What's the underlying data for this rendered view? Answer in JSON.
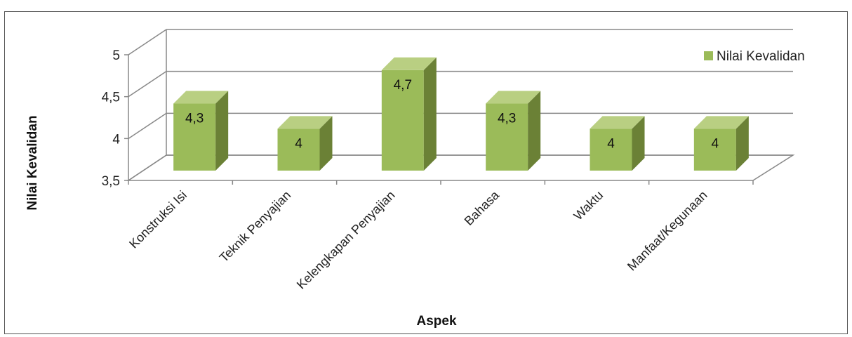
{
  "chart_data": {
    "type": "bar",
    "title": "",
    "xlabel": "Aspek",
    "ylabel": "Nilai Kevalidan",
    "ylim": [
      3.5,
      5
    ],
    "yticks": [
      "3,5",
      "4",
      "4,5",
      "5"
    ],
    "ytick_values": [
      3.5,
      4,
      4.5,
      5
    ],
    "categories": [
      "Konstruksi Isi",
      "Teknik Penyajian",
      "Kelengkapan Penyajian",
      "Bahasa",
      "Waktu",
      "Manfaat/Kegunaan"
    ],
    "series": [
      {
        "name": "Nilai Kevalidan",
        "values": [
          4.3,
          4,
          4.7,
          4.3,
          4,
          4
        ],
        "labels": [
          "4,3",
          "4",
          "4,7",
          "4,3",
          "4",
          "4"
        ],
        "color_front": "#9bbb59",
        "color_side": "#6b8136",
        "color_top": "#b9cf82"
      }
    ],
    "legend_position": "right",
    "grid": true,
    "style": "3d-column"
  }
}
